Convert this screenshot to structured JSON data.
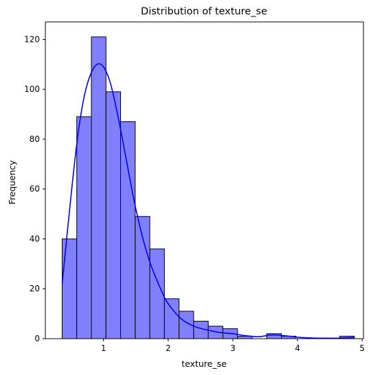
{
  "chart_data": {
    "type": "bar",
    "title": "Distribution of texture_se",
    "xlabel": "texture_se",
    "ylabel": "Frequency",
    "xlim": [
      0.1,
      5.02
    ],
    "ylim": [
      0,
      127
    ],
    "xticks": [
      1,
      2,
      3,
      4,
      5
    ],
    "yticks": [
      0,
      20,
      40,
      60,
      80,
      100,
      120
    ],
    "bin_edges": [
      0.36,
      0.586,
      0.812,
      1.038,
      1.264,
      1.49,
      1.716,
      1.942,
      2.168,
      2.394,
      2.62,
      2.846,
      3.072,
      3.298,
      3.524,
      3.75,
      3.976,
      4.202,
      4.428,
      4.654,
      4.88
    ],
    "values": [
      40,
      89,
      121,
      99,
      87,
      49,
      36,
      16,
      11,
      7,
      5,
      4,
      1,
      0,
      2,
      1,
      0,
      0,
      0,
      1
    ],
    "kde": {
      "x": [
        0.36,
        0.5,
        0.6,
        0.7,
        0.8,
        0.9,
        1.0,
        1.1,
        1.2,
        1.3,
        1.4,
        1.5,
        1.6,
        1.7,
        1.8,
        1.9,
        2.0,
        2.2,
        2.4,
        2.6,
        2.8,
        3.0,
        3.2,
        3.4,
        3.6,
        3.8,
        4.0,
        4.2,
        4.4,
        4.6,
        4.88
      ],
      "y": [
        22,
        58,
        81,
        97,
        106,
        110,
        109,
        103,
        92,
        79,
        65,
        52,
        41,
        32,
        25,
        19,
        14,
        8,
        5,
        3.5,
        2.5,
        2,
        1.2,
        0.8,
        1.5,
        1.2,
        0.6,
        0.3,
        0.2,
        0.2,
        0.5
      ]
    },
    "grid": false,
    "colors": {
      "bar_fill": "#8080ff",
      "bar_edge": "#000000",
      "kde_line": "#0000ff"
    }
  }
}
